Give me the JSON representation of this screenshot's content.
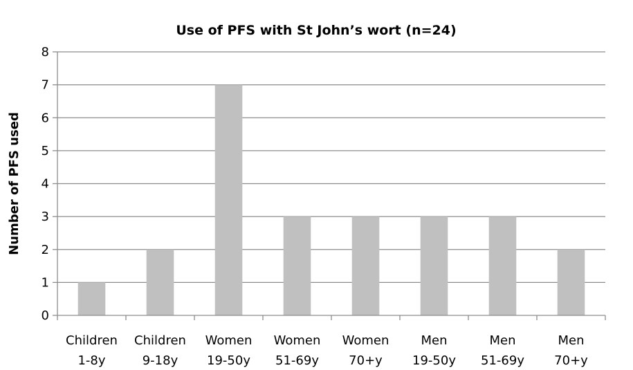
{
  "chart_data": {
    "type": "bar",
    "title": "Use of PFS with St John’s wort (n=24)",
    "xlabel": "",
    "ylabel": "Number of PFS used",
    "categories": [
      [
        "Children",
        "1-8y"
      ],
      [
        "Children",
        "9-18y"
      ],
      [
        "Women",
        "19-50y"
      ],
      [
        "Women",
        "51-69y"
      ],
      [
        "Women",
        "70+y"
      ],
      [
        "Men",
        "19-50y"
      ],
      [
        "Men",
        "51-69y"
      ],
      [
        "Men",
        "70+y"
      ]
    ],
    "values": [
      1,
      2,
      7,
      3,
      3,
      3,
      3,
      2
    ],
    "ylim": [
      0,
      8
    ],
    "yticks": [
      "0",
      "1",
      "2",
      "3",
      "4",
      "5",
      "6",
      "7",
      "8"
    ],
    "grid": "horizontal",
    "legend": "none",
    "colors": {
      "bar": "#c0c0c0",
      "grid": "#8c8c8c",
      "axis": "#8c8c8c"
    }
  }
}
